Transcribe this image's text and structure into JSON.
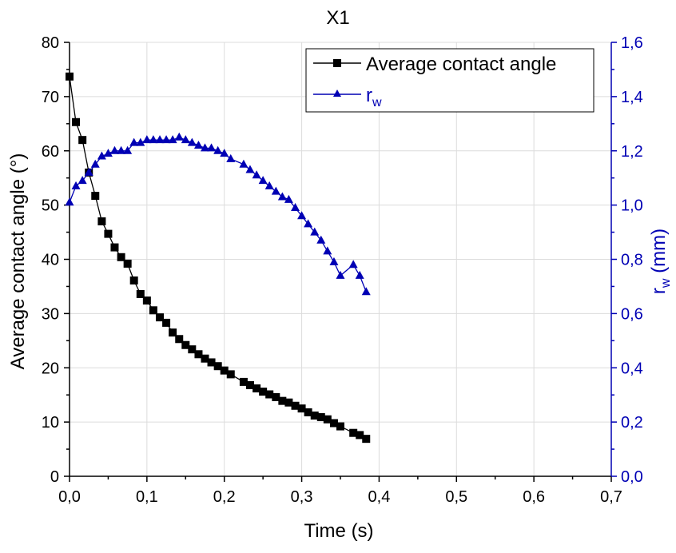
{
  "chart_data": {
    "type": "line",
    "title": "X1",
    "xlabel": "Time (s)",
    "ylabel": "Average contact angle (°)",
    "y2label": "r",
    "y2label_sub": "w",
    "y2label_suffix": " (mm)",
    "xlim": [
      0,
      0.7
    ],
    "ylim": [
      0,
      80
    ],
    "y2lim": [
      0,
      1.6
    ],
    "xticks": [
      "0,0",
      "0,1",
      "0,2",
      "0,3",
      "0,4",
      "0,5",
      "0,6",
      "0,7"
    ],
    "yticks": [
      "0",
      "10",
      "20",
      "30",
      "40",
      "50",
      "60",
      "70",
      "80"
    ],
    "y2ticks": [
      "0,0",
      "0,2",
      "0,4",
      "0,6",
      "0,8",
      "1,0",
      "1,2",
      "1,4",
      "1,6"
    ],
    "grid": true,
    "legend_position": "top-right",
    "colors": {
      "series1": "#000000",
      "series2": "#0000b4",
      "axis_right": "#0000b4",
      "grid": "#dcdcdc"
    },
    "series": [
      {
        "name": "Average contact angle",
        "name_sub": "",
        "axis": "left",
        "marker": "square",
        "x": [
          0.0,
          0.0083,
          0.0167,
          0.025,
          0.0333,
          0.0417,
          0.05,
          0.0583,
          0.0667,
          0.075,
          0.0833,
          0.0917,
          0.1,
          0.1083,
          0.1167,
          0.125,
          0.1333,
          0.1417,
          0.15,
          0.1583,
          0.1667,
          0.175,
          0.1833,
          0.1917,
          0.2,
          0.2083,
          0.225,
          0.2333,
          0.2417,
          0.25,
          0.2583,
          0.2667,
          0.275,
          0.2833,
          0.2917,
          0.3,
          0.3083,
          0.3167,
          0.325,
          0.3333,
          0.3417,
          0.35,
          0.3667,
          0.375,
          0.3833
        ],
        "y": [
          73.7,
          65.3,
          62.0,
          56.0,
          51.7,
          47.0,
          44.7,
          42.2,
          40.4,
          39.2,
          36.1,
          33.6,
          32.4,
          30.6,
          29.3,
          28.3,
          26.5,
          25.3,
          24.2,
          23.4,
          22.5,
          21.7,
          21.0,
          20.3,
          19.5,
          18.8,
          17.4,
          16.8,
          16.2,
          15.6,
          15.1,
          14.6,
          13.9,
          13.6,
          13.0,
          12.5,
          11.8,
          11.2,
          10.9,
          10.5,
          9.8,
          9.2,
          8.0,
          7.6,
          6.9
        ]
      },
      {
        "name": "r",
        "name_sub": "w",
        "axis": "right",
        "marker": "triangle",
        "x": [
          0.0,
          0.0083,
          0.0167,
          0.025,
          0.0333,
          0.0417,
          0.05,
          0.0583,
          0.0667,
          0.075,
          0.0833,
          0.0917,
          0.1,
          0.1083,
          0.1167,
          0.125,
          0.1333,
          0.1417,
          0.15,
          0.1583,
          0.1667,
          0.175,
          0.1833,
          0.1917,
          0.2,
          0.2083,
          0.225,
          0.2333,
          0.2417,
          0.25,
          0.2583,
          0.2667,
          0.275,
          0.2833,
          0.2917,
          0.3,
          0.3083,
          0.3167,
          0.325,
          0.3333,
          0.3417,
          0.35,
          0.3667,
          0.375,
          0.3833
        ],
        "y": [
          1.01,
          1.07,
          1.09,
          1.12,
          1.15,
          1.18,
          1.19,
          1.2,
          1.2,
          1.2,
          1.23,
          1.23,
          1.24,
          1.24,
          1.24,
          1.24,
          1.24,
          1.25,
          1.24,
          1.23,
          1.22,
          1.21,
          1.21,
          1.2,
          1.19,
          1.17,
          1.15,
          1.13,
          1.11,
          1.09,
          1.07,
          1.05,
          1.03,
          1.02,
          0.99,
          0.96,
          0.93,
          0.9,
          0.87,
          0.83,
          0.79,
          0.74,
          0.78,
          0.74,
          0.68
        ]
      }
    ]
  }
}
